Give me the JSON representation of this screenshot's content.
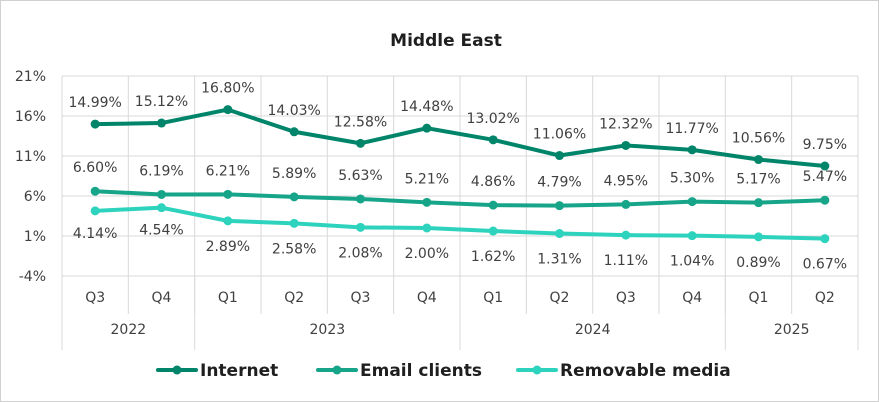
{
  "chart_data": {
    "type": "line",
    "title": "Middle East",
    "xlabel": "",
    "ylabel": "",
    "ylim": [
      -4,
      21
    ],
    "yticks": [
      "21%",
      "16%",
      "11%",
      "6%",
      "1%",
      "-4%"
    ],
    "grid": true,
    "legend_position": "bottom",
    "categories": [
      "Q3",
      "Q4",
      "Q1",
      "Q2",
      "Q3",
      "Q4",
      "Q1",
      "Q2",
      "Q3",
      "Q4",
      "Q1",
      "Q2"
    ],
    "years": [
      {
        "label": "2022",
        "span": 2
      },
      {
        "label": "2023",
        "span": 4
      },
      {
        "label": "2024",
        "span": 4
      },
      {
        "label": "2025",
        "span": 2
      }
    ],
    "series": [
      {
        "name": "Internet",
        "color": "#00856a",
        "values": [
          14.99,
          15.12,
          16.8,
          14.03,
          12.58,
          14.48,
          13.02,
          11.06,
          12.32,
          11.77,
          10.56,
          9.75
        ],
        "labels": [
          "14.99%",
          "15.12%",
          "16.80%",
          "14.03%",
          "12.58%",
          "14.48%",
          "13.02%",
          "11.06%",
          "12.32%",
          "11.77%",
          "10.56%",
          "9.75%"
        ]
      },
      {
        "name": "Email clients",
        "color": "#17a589",
        "values": [
          6.6,
          6.19,
          6.21,
          5.89,
          5.63,
          5.21,
          4.86,
          4.79,
          4.95,
          5.3,
          5.17,
          5.47
        ],
        "labels": [
          "6.60%",
          "6.19%",
          "6.21%",
          "5.89%",
          "5.63%",
          "5.21%",
          "4.86%",
          "4.79%",
          "4.95%",
          "5.30%",
          "5.17%",
          "5.47%"
        ]
      },
      {
        "name": "Removable media",
        "color": "#2ed3be",
        "values": [
          4.14,
          4.54,
          2.89,
          2.58,
          2.08,
          2.0,
          1.62,
          1.31,
          1.11,
          1.04,
          0.89,
          0.67
        ],
        "labels": [
          "4.14%",
          "4.54%",
          "2.89%",
          "2.58%",
          "2.08%",
          "2.00%",
          "1.62%",
          "1.31%",
          "1.11%",
          "1.04%",
          "0.89%",
          "0.67%"
        ]
      }
    ]
  }
}
